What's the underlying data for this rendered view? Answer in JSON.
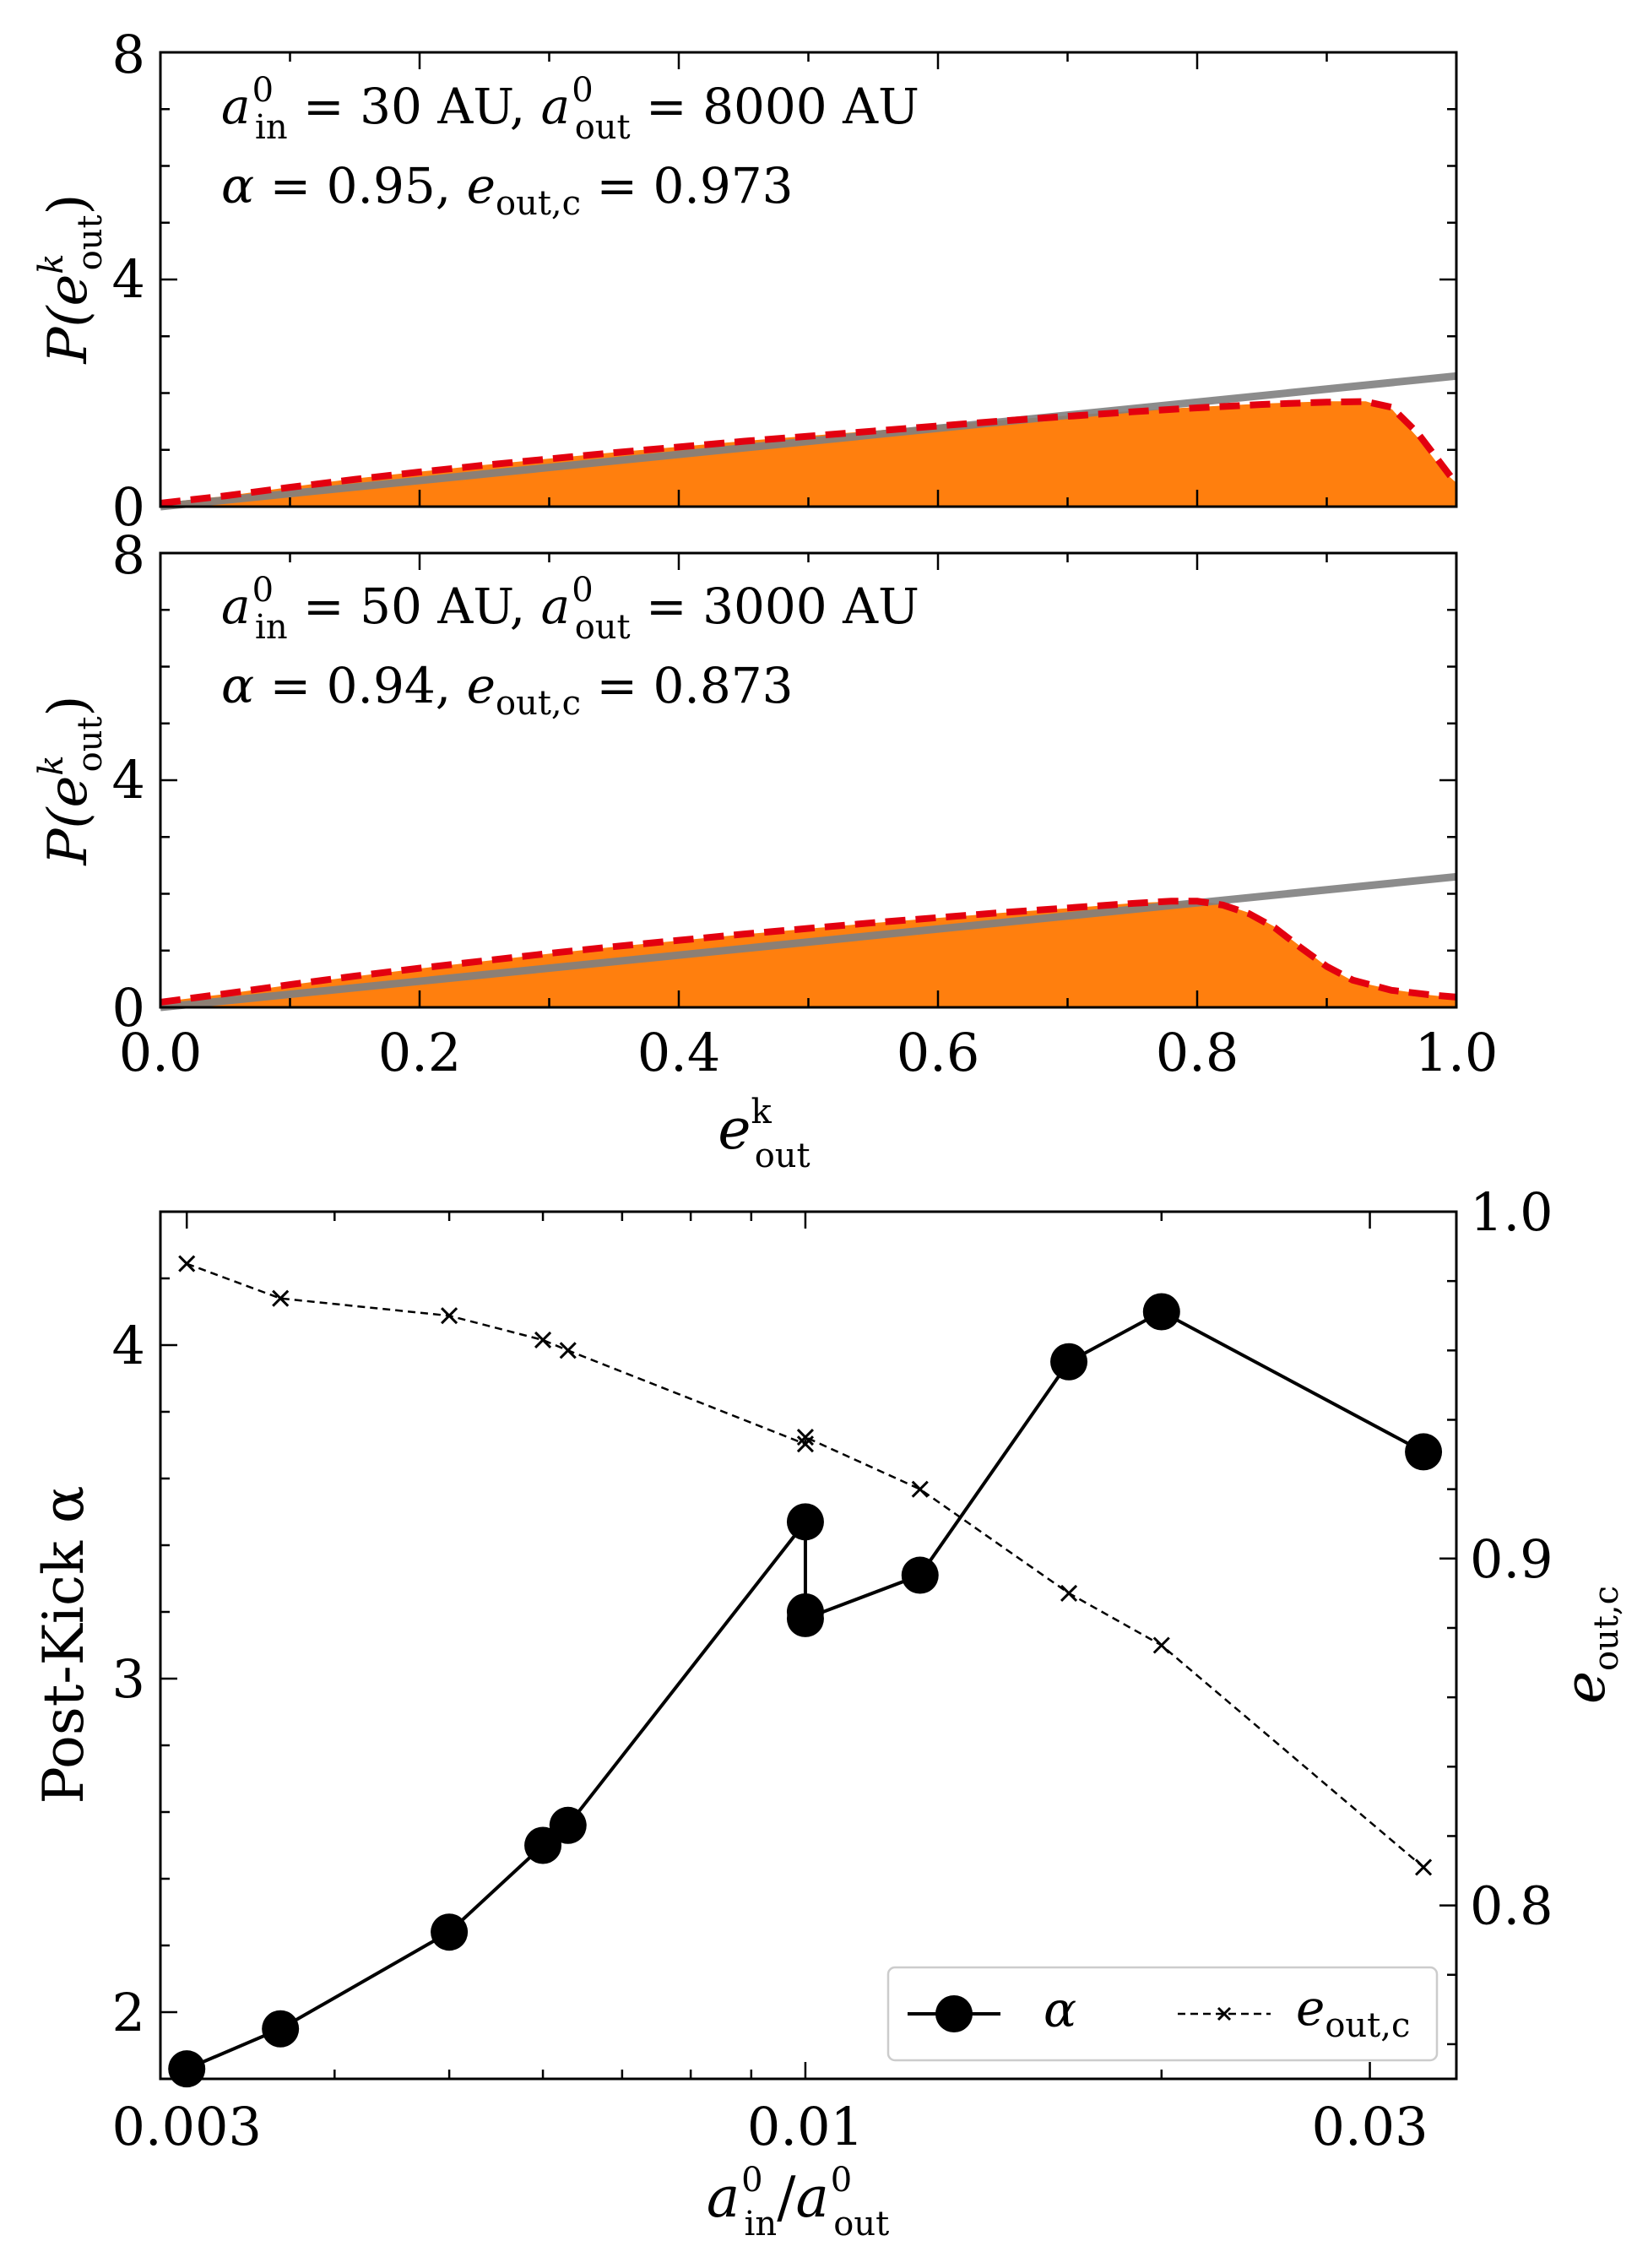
{
  "chart_data": [
    {
      "type": "area",
      "panel": "top",
      "ylabel": "P(e_out^k)",
      "ylabel_base": "P(e",
      "ylabel_sup": "k",
      "ylabel_sub": "out",
      "ylabel_close": ")",
      "xlim": [
        0,
        1
      ],
      "ylim": [
        0,
        8
      ],
      "yticks": [
        "0",
        "4",
        "8"
      ],
      "annotation_line1": {
        "a_in": "a",
        "in_sub": "in",
        "in_sup": "0",
        "eq1": " = 30 AU, ",
        "a_out": "a",
        "out_sub": "out",
        "out_sup": "0",
        "eq2": " = 8000 AU"
      },
      "annotation_line2": {
        "alpha": "α",
        "eq1": " = 0.95, ",
        "e": "e",
        "e_sub": "out,c",
        "eq2": " = 0.973"
      },
      "alpha": 0.95,
      "e_out_c": 0.973,
      "histogram": {
        "x": [
          0.0,
          0.05,
          0.1,
          0.15,
          0.2,
          0.25,
          0.3,
          0.35,
          0.4,
          0.45,
          0.5,
          0.55,
          0.6,
          0.65,
          0.7,
          0.75,
          0.8,
          0.85,
          0.9,
          0.93,
          0.95,
          0.97,
          0.99,
          1.0
        ],
        "y": [
          0.05,
          0.17,
          0.33,
          0.48,
          0.6,
          0.72,
          0.83,
          0.94,
          1.04,
          1.14,
          1.23,
          1.32,
          1.42,
          1.51,
          1.59,
          1.67,
          1.74,
          1.8,
          1.84,
          1.84,
          1.7,
          1.2,
          0.6,
          0.4
        ]
      },
      "fit_curve": {
        "x": [
          0.0,
          0.05,
          0.1,
          0.15,
          0.2,
          0.25,
          0.3,
          0.35,
          0.4,
          0.45,
          0.5,
          0.55,
          0.6,
          0.65,
          0.7,
          0.75,
          0.8,
          0.85,
          0.9,
          0.93,
          0.95,
          0.97,
          0.99,
          1.0
        ],
        "y": [
          0.06,
          0.19,
          0.34,
          0.48,
          0.61,
          0.73,
          0.84,
          0.95,
          1.05,
          1.15,
          1.24,
          1.33,
          1.42,
          1.51,
          1.59,
          1.67,
          1.74,
          1.8,
          1.84,
          1.85,
          1.75,
          1.3,
          0.7,
          0.4
        ]
      },
      "reference_line": {
        "x": [
          0,
          1
        ],
        "y": [
          0,
          2.3
        ]
      }
    },
    {
      "type": "area",
      "panel": "middle",
      "ylabel": "P(e_out^k)",
      "ylabel_base": "P(e",
      "ylabel_sup": "k",
      "ylabel_sub": "out",
      "ylabel_close": ")",
      "xlabel": "e_out^k",
      "xlabel_base": "e",
      "xlabel_sup": "k",
      "xlabel_sub": "out",
      "xlim": [
        0,
        1
      ],
      "ylim": [
        0,
        8
      ],
      "xticks": [
        "0.0",
        "0.2",
        "0.4",
        "0.6",
        "0.8",
        "1.0"
      ],
      "yticks": [
        "0",
        "4",
        "8"
      ],
      "annotation_line1": {
        "a_in": "a",
        "in_sub": "in",
        "in_sup": "0",
        "eq1": " = 50 AU, ",
        "a_out": "a",
        "out_sub": "out",
        "out_sup": "0",
        "eq2": " = 3000 AU"
      },
      "annotation_line2": {
        "alpha": "α",
        "eq1": " = 0.94, ",
        "e": "e",
        "e_sub": "out,c",
        "eq2": " = 0.873"
      },
      "alpha": 0.94,
      "e_out_c": 0.873,
      "histogram": {
        "x": [
          0.0,
          0.05,
          0.1,
          0.15,
          0.2,
          0.25,
          0.3,
          0.35,
          0.4,
          0.45,
          0.5,
          0.55,
          0.6,
          0.65,
          0.7,
          0.75,
          0.78,
          0.8,
          0.82,
          0.84,
          0.86,
          0.88,
          0.9,
          0.92,
          0.95,
          0.98,
          1.0
        ],
        "y": [
          0.08,
          0.22,
          0.38,
          0.53,
          0.67,
          0.8,
          0.93,
          1.05,
          1.16,
          1.27,
          1.37,
          1.47,
          1.56,
          1.65,
          1.73,
          1.82,
          1.85,
          1.86,
          1.8,
          1.65,
          1.4,
          1.05,
          0.7,
          0.45,
          0.3,
          0.2,
          0.15
        ]
      },
      "fit_curve": {
        "x": [
          0.0,
          0.05,
          0.1,
          0.15,
          0.2,
          0.25,
          0.3,
          0.35,
          0.4,
          0.45,
          0.5,
          0.55,
          0.6,
          0.65,
          0.7,
          0.75,
          0.78,
          0.8,
          0.82,
          0.84,
          0.86,
          0.88,
          0.9,
          0.92,
          0.95,
          0.98,
          1.0
        ],
        "y": [
          0.09,
          0.24,
          0.4,
          0.55,
          0.69,
          0.82,
          0.95,
          1.07,
          1.18,
          1.29,
          1.39,
          1.49,
          1.58,
          1.67,
          1.75,
          1.83,
          1.87,
          1.87,
          1.8,
          1.65,
          1.4,
          1.05,
          0.72,
          0.48,
          0.3,
          0.22,
          0.18
        ]
      },
      "reference_line": {
        "x": [
          0,
          1
        ],
        "y": [
          0,
          2.3
        ]
      }
    },
    {
      "type": "line",
      "panel": "bottom",
      "xscale": "log",
      "xlabel": "a_in^0 / a_out^0",
      "xlabel_parts": {
        "a1": "a",
        "in_sub": "in",
        "in_sup": "0",
        "slash": "/",
        "a2": "a",
        "out_sub": "out",
        "out_sup": "0"
      },
      "ylabel_left": "Post-Kick α",
      "ylabel_right": "e_out,c",
      "ylabel_right_base": "e",
      "ylabel_right_sub": "out,c",
      "xlim": [
        0.00285,
        0.0355
      ],
      "ylim_left": [
        1.8,
        4.4
      ],
      "ylim_right": [
        0.75,
        1.0
      ],
      "xticks": [
        {
          "value": 0.003,
          "label": "0.003"
        },
        {
          "value": 0.01,
          "label": "0.01"
        },
        {
          "value": 0.03,
          "label": "0.03"
        }
      ],
      "yticks_left": [
        2,
        3,
        4
      ],
      "yticks_right": [
        0.8,
        0.9,
        1.0
      ],
      "yticks_right_labels": [
        "0.8",
        "0.9",
        "1.0"
      ],
      "legend": {
        "position": "lower right",
        "alpha_label": "α",
        "e_label_base": "e",
        "e_label_sub": "out,c"
      },
      "series": [
        {
          "name": "α",
          "axis": "left",
          "x": [
            0.003,
            0.0036,
            0.005,
            0.006,
            0.0063,
            0.01,
            0.01,
            0.01,
            0.0125,
            0.0167,
            0.02,
            0.0333
          ],
          "y": [
            1.83,
            1.95,
            2.24,
            2.5,
            2.56,
            3.47,
            3.2,
            3.18,
            3.31,
            3.95,
            4.1,
            3.68
          ]
        },
        {
          "name": "e_out,c",
          "axis": "right",
          "x": [
            0.003,
            0.0036,
            0.005,
            0.006,
            0.0063,
            0.01,
            0.01,
            0.0125,
            0.0167,
            0.02,
            0.0333
          ],
          "y": [
            0.985,
            0.975,
            0.97,
            0.963,
            0.96,
            0.933,
            0.935,
            0.92,
            0.89,
            0.875,
            0.811
          ]
        }
      ]
    }
  ],
  "colors": {
    "histogram_fill": "#ff7f0e",
    "fit_dash": "#e3000f",
    "reference": "#7f7f7f",
    "axis": "#000000"
  }
}
